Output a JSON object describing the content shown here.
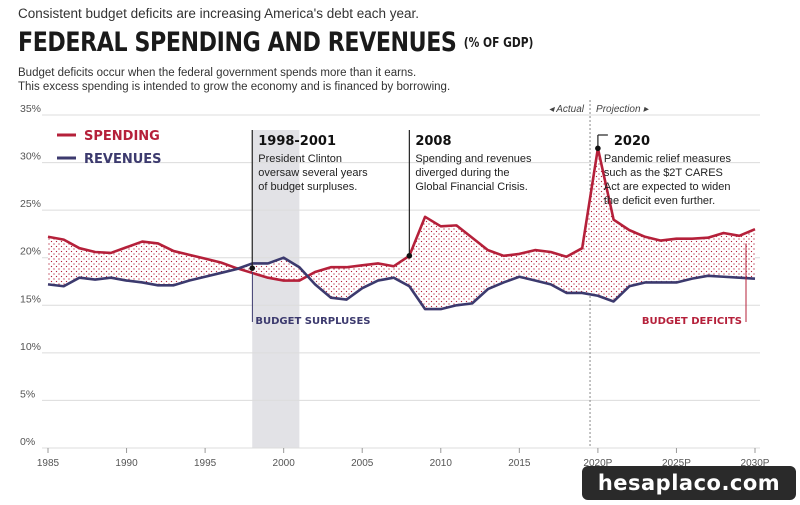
{
  "header": {
    "intro": "Consistent budget deficits are increasing America's debt each year.",
    "title": "FEDERAL SPENDING AND REVENUES",
    "title_note": "(% OF GDP)",
    "subtitle_line1": "Budget deficits occur when the federal government spends more than it earns.",
    "subtitle_line2": "This excess spending is intended to grow the economy and is financed by borrowing."
  },
  "colors": {
    "spending": "#b5203a",
    "revenues": "#3c3a6e",
    "shade": "#e2e2e6",
    "annotation": "#222222"
  },
  "chart_data": {
    "type": "line",
    "ylim": [
      0,
      35
    ],
    "xlim": [
      1985,
      2030
    ],
    "y_ticks": [
      {
        "value": 0,
        "label": "0%"
      },
      {
        "value": 5,
        "label": "5%"
      },
      {
        "value": 10,
        "label": "10%"
      },
      {
        "value": 15,
        "label": "15%"
      },
      {
        "value": 20,
        "label": "20%"
      },
      {
        "value": 25,
        "label": "25%"
      },
      {
        "value": 30,
        "label": "30%"
      },
      {
        "value": 35,
        "label": "35%"
      }
    ],
    "x_ticks": [
      {
        "value": 1985,
        "label": "1985"
      },
      {
        "value": 1990,
        "label": "1990"
      },
      {
        "value": 1995,
        "label": "1995"
      },
      {
        "value": 2000,
        "label": "2000"
      },
      {
        "value": 2005,
        "label": "2005"
      },
      {
        "value": 2010,
        "label": "2010"
      },
      {
        "value": 2015,
        "label": "2015"
      },
      {
        "value": 2020,
        "label": "2020P"
      },
      {
        "value": 2025,
        "label": "2025P"
      },
      {
        "value": 2030,
        "label": "2030P"
      }
    ],
    "legend": [
      {
        "name": "SPENDING",
        "color": "#b5203a"
      },
      {
        "name": "REVENUES",
        "color": "#3c3a6e"
      }
    ],
    "series": [
      {
        "name": "SPENDING",
        "x": [
          1985,
          1986,
          1987,
          1988,
          1989,
          1990,
          1991,
          1992,
          1993,
          1994,
          1995,
          1996,
          1997,
          1998,
          1999,
          2000,
          2001,
          2002,
          2003,
          2004,
          2005,
          2006,
          2007,
          2008,
          2009,
          2010,
          2011,
          2012,
          2013,
          2014,
          2015,
          2016,
          2017,
          2018,
          2019,
          2020,
          2021,
          2022,
          2023,
          2024,
          2025,
          2026,
          2027,
          2028,
          2029,
          2030
        ],
        "values": [
          22.2,
          21.9,
          21.0,
          20.6,
          20.5,
          21.1,
          21.7,
          21.5,
          20.7,
          20.3,
          19.9,
          19.5,
          18.9,
          18.4,
          17.9,
          17.6,
          17.6,
          18.5,
          19.0,
          19.0,
          19.2,
          19.4,
          19.1,
          20.2,
          24.3,
          23.3,
          23.4,
          22.1,
          20.8,
          20.2,
          20.4,
          20.8,
          20.6,
          20.1,
          21.0,
          31.5,
          24.0,
          22.9,
          22.2,
          21.8,
          22.0,
          22.0,
          22.1,
          22.6,
          22.3,
          23.0
        ]
      },
      {
        "name": "REVENUES",
        "x": [
          1985,
          1986,
          1987,
          1988,
          1989,
          1990,
          1991,
          1992,
          1993,
          1994,
          1995,
          1996,
          1997,
          1998,
          1999,
          2000,
          2001,
          2002,
          2003,
          2004,
          2005,
          2006,
          2007,
          2008,
          2009,
          2010,
          2011,
          2012,
          2013,
          2014,
          2015,
          2016,
          2017,
          2018,
          2019,
          2020,
          2021,
          2022,
          2023,
          2024,
          2025,
          2026,
          2027,
          2028,
          2029,
          2030
        ],
        "values": [
          17.2,
          17.0,
          17.9,
          17.7,
          17.9,
          17.6,
          17.4,
          17.1,
          17.1,
          17.6,
          18.0,
          18.4,
          18.8,
          19.4,
          19.4,
          20.0,
          19.0,
          17.2,
          15.8,
          15.6,
          16.8,
          17.6,
          17.9,
          17.0,
          14.6,
          14.6,
          15.0,
          15.2,
          16.7,
          17.4,
          18.0,
          17.6,
          17.2,
          16.3,
          16.3,
          16.0,
          15.4,
          17.0,
          17.4,
          17.4,
          17.4,
          17.8,
          18.1,
          18.0,
          17.9,
          17.8
        ]
      }
    ],
    "shaded_period": {
      "from": 1998,
      "to": 2001
    },
    "projection_divider": 2019.5,
    "divider_labels": {
      "left": "◂ Actual",
      "right": "Projection ▸"
    },
    "annotations": [
      {
        "x": 1998,
        "y": 18.9,
        "title": "1998-2001",
        "lines": [
          "President Clinton",
          "oversaw several years",
          "of budget surpluses."
        ]
      },
      {
        "x": 2008,
        "y": 20.2,
        "title": "2008",
        "lines": [
          "Spending and revenues",
          "diverged during the",
          "Global Financial Crisis."
        ]
      },
      {
        "x": 2020,
        "y": 31.5,
        "title": "2020",
        "lines": [
          "Pandemic relief measures",
          "such as the $2T CARES",
          "Act are expected to widen",
          "the deficit even further."
        ]
      }
    ],
    "region_labels": [
      {
        "text": "BUDGET SURPLUSES",
        "series": "REVENUES"
      },
      {
        "text": "BUDGET DEFICITS",
        "series": "SPENDING"
      }
    ]
  },
  "watermark": "hesaplaco.com"
}
